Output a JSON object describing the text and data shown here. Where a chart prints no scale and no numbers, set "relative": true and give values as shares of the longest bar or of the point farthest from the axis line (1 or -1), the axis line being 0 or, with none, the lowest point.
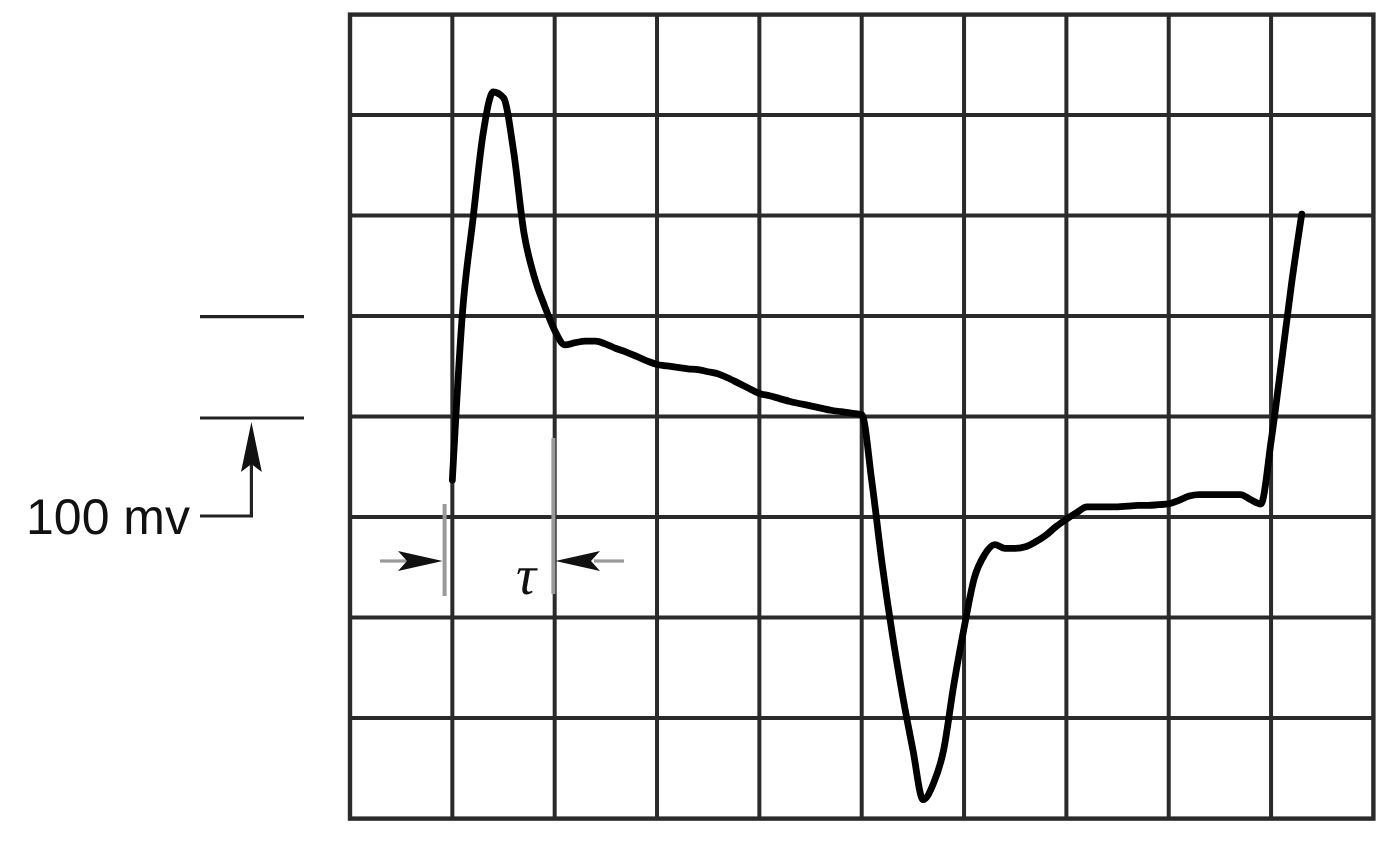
{
  "chart_data": {
    "type": "line",
    "relative": true,
    "grid": true,
    "color": "#000000",
    "annotations": [
      "100 mv",
      "τ"
    ],
    "categories": [
      null,
      null,
      null,
      null,
      null,
      null,
      null,
      null,
      null,
      null,
      null,
      null,
      null,
      null,
      null,
      null,
      null,
      null,
      null,
      null,
      null,
      null,
      null,
      null,
      null,
      null,
      null,
      null,
      null,
      null,
      null,
      null,
      null,
      null,
      null,
      null,
      null,
      null,
      null,
      null,
      null,
      null,
      null,
      null,
      null,
      null,
      null,
      null,
      null,
      null,
      null,
      null,
      null,
      null,
      null,
      null,
      null,
      null,
      null,
      null,
      null,
      null,
      null,
      null,
      null,
      null,
      null,
      null,
      null,
      null,
      null,
      null,
      null,
      null,
      null,
      null,
      null,
      null,
      null,
      null,
      null,
      null,
      null,
      null,
      null,
      null,
      null,
      null,
      null,
      null,
      null,
      null,
      null,
      null,
      null,
      null,
      null,
      null,
      null,
      null,
      null
    ],
    "values": [
      null,
      null,
      null,
      null,
      null,
      null,
      null,
      null,
      null,
      null,
      0.466,
      0.698,
      0.823,
      0.942,
      1,
      0.992,
      0.917,
      0.806,
      0.746,
      0.706,
      0.672,
      0.652,
      0.655,
      0.657,
      0.657,
      0.653,
      0.647,
      0.642,
      0.636,
      0.63,
      0.625,
      0.623,
      0.621,
      0.619,
      0.618,
      0.615,
      0.612,
      0.606,
      0.599,
      0.592,
      0.585,
      0.582,
      0.578,
      0.574,
      0.571,
      0.568,
      0.565,
      0.562,
      0.56,
      0.558,
      0.556,
      0.463,
      0.35,
      0.253,
      0.169,
      0.095,
      0.026,
      0.048,
      0.094,
      0.184,
      0.262,
      0.331,
      0.363,
      0.377,
      0.372,
      0.372,
      0.374,
      0.381,
      0.39,
      0.402,
      0.412,
      0.421,
      0.429,
      0.429,
      0.429,
      0.429,
      0.43,
      0.431,
      0.431,
      0.432,
      0.433,
      0.438,
      0.444,
      0.446,
      0.446,
      0.446,
      0.446,
      0.446,
      0.439,
      0.433,
      0.519,
      0.626,
      0.736,
      0.832,
      null,
      null,
      null,
      null,
      null,
      null,
      null
    ]
  }
}
